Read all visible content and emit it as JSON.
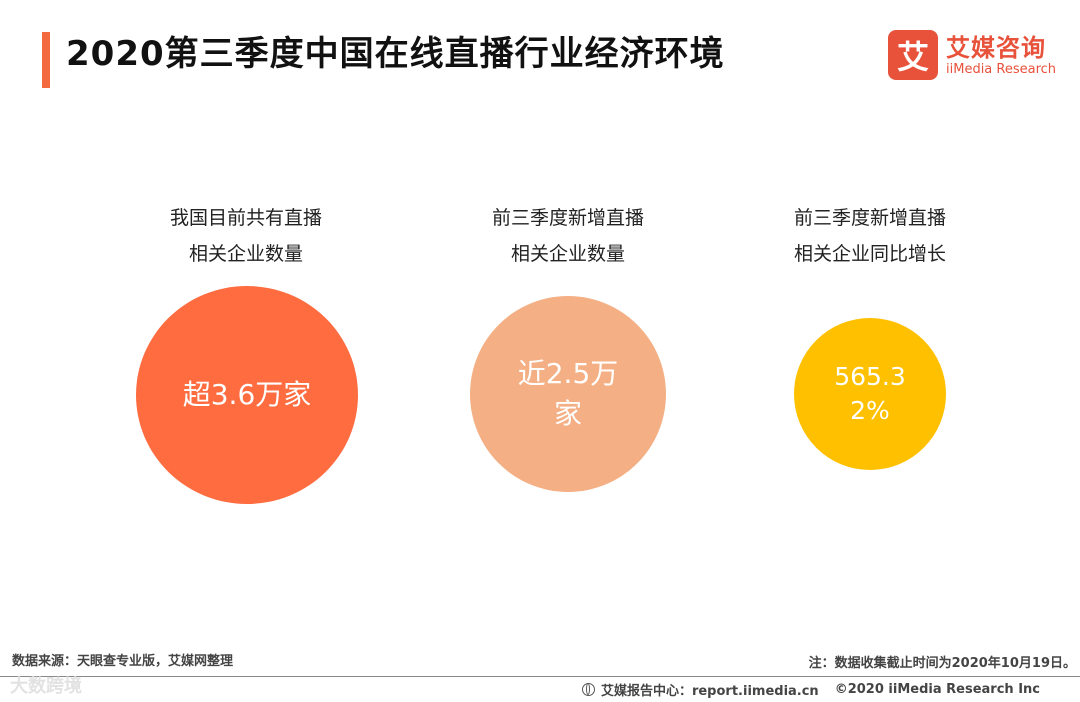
{
  "title": "2020第三季度中国在线直播行业经济环境",
  "logo": {
    "mark": "艾",
    "cn": "艾媒咨询",
    "en": "iiMedia Research"
  },
  "chart_data": {
    "type": "bubble",
    "items": [
      {
        "label_line1": "我国目前共有直播",
        "label_line2": "相关企业数量",
        "value_text": "超3.6万家",
        "value": 36000,
        "unit": "家",
        "color": "#fe6c40"
      },
      {
        "label_line1": "前三季度新增直播",
        "label_line2": "相关企业数量",
        "value_text": "近2.5万家",
        "value": 25000,
        "unit": "家",
        "color": "#f4b084"
      },
      {
        "label_line1": "前三季度新增直播",
        "label_line2": "相关企业同比增长",
        "value_text": "565.32%",
        "value": 565.32,
        "unit": "%",
        "color": "#ffc000"
      }
    ]
  },
  "footer": {
    "source": "数据来源：天眼查专业版，艾媒网整理",
    "note": "注：数据收集截止时间为2020年10月19日。",
    "report_center": "艾媒报告中心：report.iimedia.cn",
    "copyright": "©2020  iiMedia Research  Inc",
    "watermark": "大数跨境"
  }
}
